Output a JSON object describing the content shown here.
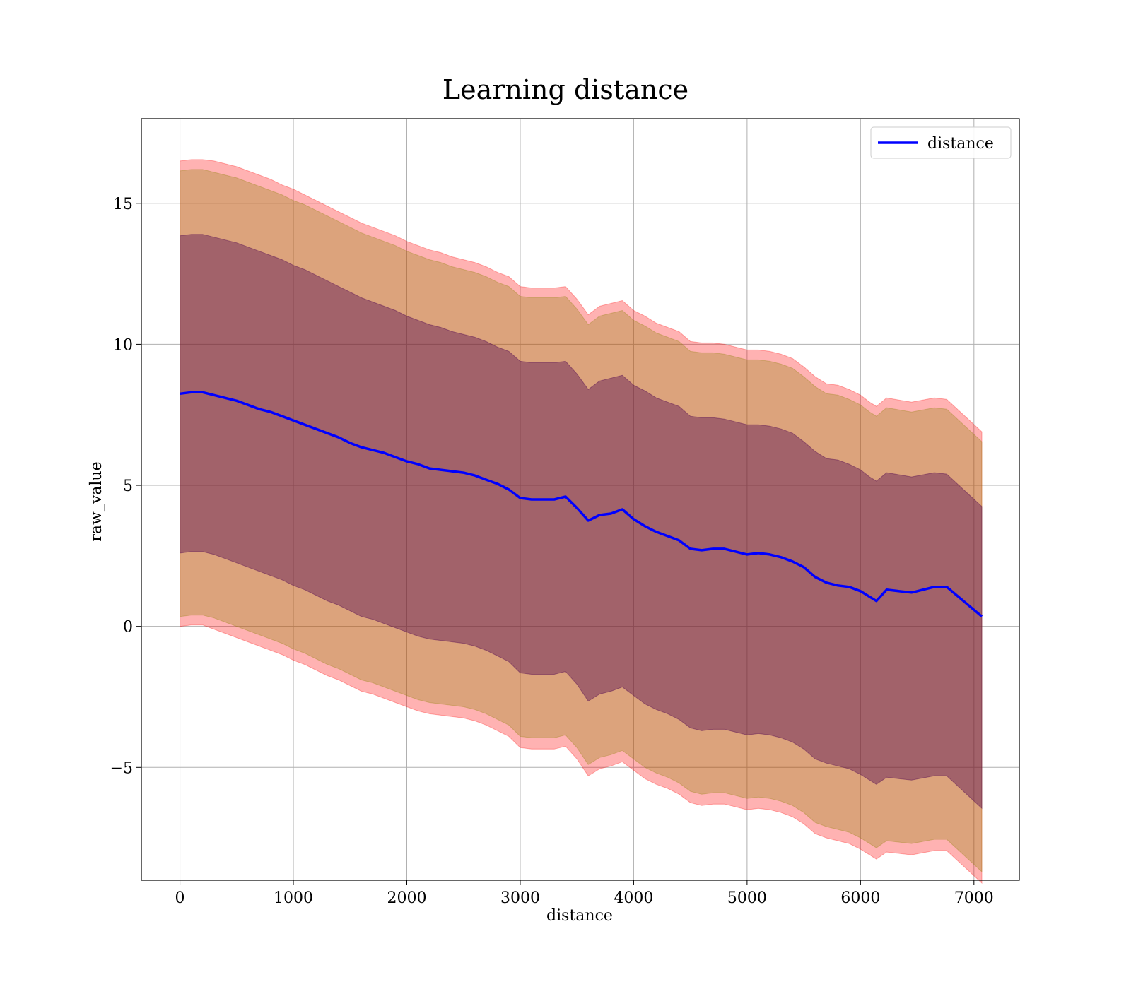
{
  "chart_data": {
    "type": "line",
    "title": "Learning distance",
    "xlabel": "distance",
    "ylabel": "raw_value",
    "xlim": [
      -340,
      7400
    ],
    "ylim": [
      -9,
      18
    ],
    "xticks": [
      0,
      1000,
      2000,
      3000,
      4000,
      5000,
      6000,
      7000
    ],
    "xtick_labels": [
      "0",
      "1000",
      "2000",
      "3000",
      "4000",
      "5000",
      "6000",
      "7000"
    ],
    "yticks": [
      -5,
      0,
      5,
      10,
      15
    ],
    "ytick_labels": [
      "−5",
      "0",
      "5",
      "10",
      "15"
    ],
    "grid": true,
    "legend": {
      "position": "top-right",
      "entries": [
        "distance"
      ]
    },
    "colors": {
      "line": "#0000ff",
      "band_outer": "#ff0000",
      "band_middle": "#8b8000",
      "band_inner": "#4b0050"
    },
    "series": [
      {
        "name": "distance",
        "x": [
          0,
          100,
          200,
          300,
          400,
          500,
          600,
          700,
          800,
          900,
          1000,
          1100,
          1200,
          1300,
          1400,
          1500,
          1600,
          1700,
          1800,
          1900,
          2000,
          2100,
          2200,
          2300,
          2400,
          2500,
          2600,
          2700,
          2800,
          2900,
          3000,
          3100,
          3200,
          3300,
          3400,
          3500,
          3600,
          3700,
          3800,
          3900,
          4000,
          4100,
          4200,
          4300,
          4400,
          4500,
          4600,
          4700,
          4800,
          4900,
          5000,
          5100,
          5200,
          5300,
          5400,
          5500,
          5600,
          5700,
          5800,
          5900,
          6000,
          6080,
          6140,
          6230,
          6450,
          6650,
          6760,
          7070
        ],
        "y": [
          8.25,
          8.3,
          8.3,
          8.2,
          8.1,
          8.0,
          7.85,
          7.7,
          7.6,
          7.45,
          7.3,
          7.15,
          7.0,
          6.85,
          6.7,
          6.5,
          6.35,
          6.25,
          6.15,
          6.0,
          5.85,
          5.75,
          5.6,
          5.55,
          5.5,
          5.45,
          5.35,
          5.2,
          5.05,
          4.85,
          4.55,
          4.5,
          4.5,
          4.5,
          4.6,
          4.2,
          3.75,
          3.95,
          4.0,
          4.15,
          3.8,
          3.55,
          3.35,
          3.2,
          3.05,
          2.75,
          2.7,
          2.75,
          2.75,
          2.65,
          2.55,
          2.6,
          2.55,
          2.45,
          2.3,
          2.1,
          1.75,
          1.55,
          1.45,
          1.4,
          1.25,
          1.05,
          0.9,
          1.3,
          1.2,
          1.4,
          1.4,
          0.35
        ]
      }
    ],
    "bands": [
      {
        "role": "outer",
        "upper": [
          16.5,
          16.55,
          16.55,
          16.5,
          16.4,
          16.3,
          16.15,
          16.0,
          15.85,
          15.65,
          15.5,
          15.3,
          15.1,
          14.9,
          14.7,
          14.5,
          14.3,
          14.15,
          14.0,
          13.85,
          13.65,
          13.5,
          13.35,
          13.25,
          13.1,
          13.0,
          12.9,
          12.75,
          12.55,
          12.4,
          12.05,
          12.0,
          12.0,
          12.0,
          12.05,
          11.6,
          11.05,
          11.35,
          11.45,
          11.55,
          11.2,
          11.0,
          10.75,
          10.6,
          10.45,
          10.1,
          10.05,
          10.05,
          10.0,
          9.9,
          9.8,
          9.8,
          9.75,
          9.65,
          9.5,
          9.2,
          8.85,
          8.6,
          8.55,
          8.4,
          8.2,
          7.95,
          7.8,
          8.1,
          7.95,
          8.1,
          8.05,
          6.9
        ],
        "lower": [
          0.0,
          0.05,
          0.05,
          -0.1,
          -0.25,
          -0.4,
          -0.55,
          -0.7,
          -0.85,
          -1.0,
          -1.2,
          -1.35,
          -1.55,
          -1.75,
          -1.9,
          -2.1,
          -2.3,
          -2.4,
          -2.55,
          -2.7,
          -2.85,
          -3.0,
          -3.1,
          -3.15,
          -3.2,
          -3.25,
          -3.35,
          -3.5,
          -3.7,
          -3.9,
          -4.3,
          -4.35,
          -4.35,
          -4.35,
          -4.25,
          -4.7,
          -5.3,
          -5.05,
          -4.95,
          -4.8,
          -5.1,
          -5.4,
          -5.6,
          -5.75,
          -5.95,
          -6.25,
          -6.35,
          -6.3,
          -6.3,
          -6.4,
          -6.5,
          -6.45,
          -6.5,
          -6.6,
          -6.75,
          -7.0,
          -7.35,
          -7.5,
          -7.6,
          -7.7,
          -7.9,
          -8.1,
          -8.25,
          -8.0,
          -8.1,
          -7.95,
          -7.95,
          -9.1
        ]
      },
      {
        "role": "middle",
        "upper": [
          16.15,
          16.2,
          16.2,
          16.1,
          16.0,
          15.9,
          15.75,
          15.6,
          15.45,
          15.3,
          15.1,
          14.95,
          14.75,
          14.55,
          14.35,
          14.15,
          13.95,
          13.8,
          13.65,
          13.5,
          13.3,
          13.15,
          13.0,
          12.9,
          12.75,
          12.65,
          12.55,
          12.4,
          12.2,
          12.05,
          11.7,
          11.65,
          11.65,
          11.65,
          11.7,
          11.25,
          10.7,
          11.0,
          11.1,
          11.2,
          10.85,
          10.65,
          10.4,
          10.25,
          10.1,
          9.75,
          9.7,
          9.7,
          9.65,
          9.55,
          9.45,
          9.45,
          9.4,
          9.3,
          9.15,
          8.85,
          8.5,
          8.25,
          8.2,
          8.05,
          7.85,
          7.6,
          7.45,
          7.75,
          7.6,
          7.75,
          7.7,
          6.55
        ],
        "lower": [
          0.35,
          0.4,
          0.4,
          0.3,
          0.15,
          0.0,
          -0.15,
          -0.3,
          -0.45,
          -0.6,
          -0.8,
          -0.95,
          -1.15,
          -1.35,
          -1.5,
          -1.7,
          -1.9,
          -2.0,
          -2.15,
          -2.3,
          -2.45,
          -2.6,
          -2.7,
          -2.75,
          -2.8,
          -2.85,
          -2.95,
          -3.1,
          -3.3,
          -3.5,
          -3.9,
          -3.95,
          -3.95,
          -3.95,
          -3.85,
          -4.3,
          -4.9,
          -4.65,
          -4.55,
          -4.4,
          -4.7,
          -5.0,
          -5.2,
          -5.35,
          -5.55,
          -5.85,
          -5.95,
          -5.9,
          -5.9,
          -6.0,
          -6.1,
          -6.05,
          -6.1,
          -6.2,
          -6.35,
          -6.6,
          -6.95,
          -7.1,
          -7.2,
          -7.3,
          -7.5,
          -7.7,
          -7.85,
          -7.6,
          -7.7,
          -7.55,
          -7.55,
          -8.7
        ]
      },
      {
        "role": "inner",
        "upper": [
          13.85,
          13.9,
          13.9,
          13.8,
          13.7,
          13.6,
          13.45,
          13.3,
          13.15,
          13.0,
          12.8,
          12.65,
          12.45,
          12.25,
          12.05,
          11.85,
          11.65,
          11.5,
          11.35,
          11.2,
          11.0,
          10.85,
          10.7,
          10.6,
          10.45,
          10.35,
          10.25,
          10.1,
          9.9,
          9.75,
          9.4,
          9.35,
          9.35,
          9.35,
          9.4,
          8.95,
          8.4,
          8.7,
          8.8,
          8.9,
          8.55,
          8.35,
          8.1,
          7.95,
          7.8,
          7.45,
          7.4,
          7.4,
          7.35,
          7.25,
          7.15,
          7.15,
          7.1,
          7.0,
          6.85,
          6.55,
          6.2,
          5.95,
          5.9,
          5.75,
          5.55,
          5.3,
          5.15,
          5.45,
          5.3,
          5.45,
          5.4,
          4.25
        ],
        "lower": [
          2.6,
          2.65,
          2.65,
          2.55,
          2.4,
          2.25,
          2.1,
          1.95,
          1.8,
          1.65,
          1.45,
          1.3,
          1.1,
          0.9,
          0.75,
          0.55,
          0.35,
          0.25,
          0.1,
          -0.05,
          -0.2,
          -0.35,
          -0.45,
          -0.5,
          -0.55,
          -0.6,
          -0.7,
          -0.85,
          -1.05,
          -1.25,
          -1.65,
          -1.7,
          -1.7,
          -1.7,
          -1.6,
          -2.05,
          -2.65,
          -2.4,
          -2.3,
          -2.15,
          -2.45,
          -2.75,
          -2.95,
          -3.1,
          -3.3,
          -3.6,
          -3.7,
          -3.65,
          -3.65,
          -3.75,
          -3.85,
          -3.8,
          -3.85,
          -3.95,
          -4.1,
          -4.35,
          -4.7,
          -4.85,
          -4.95,
          -5.05,
          -5.25,
          -5.45,
          -5.6,
          -5.35,
          -5.45,
          -5.3,
          -5.3,
          -6.45
        ]
      }
    ]
  }
}
